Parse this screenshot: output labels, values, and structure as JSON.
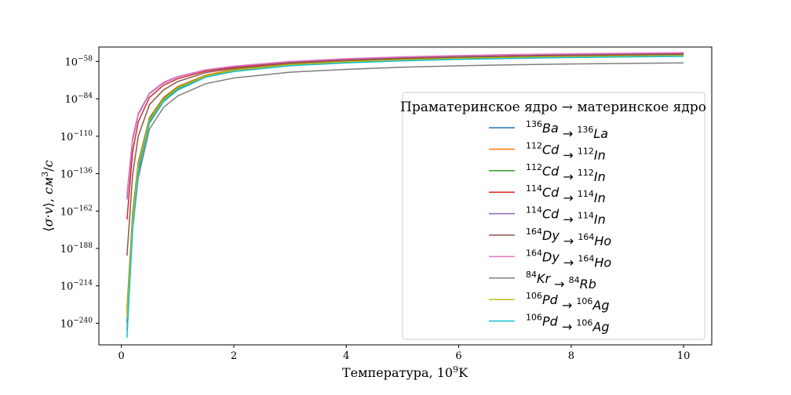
{
  "chart_data": {
    "type": "line",
    "xlabel": "Температура, 10⁹K",
    "ylabel": "⟨σ·v⟩, см³/c",
    "xlim": [
      -0.4,
      10.5
    ],
    "ylim": [
      -255,
      -48
    ],
    "yscale": "log",
    "x_ticks": [
      0,
      2,
      4,
      6,
      8,
      10
    ],
    "y_ticks": [
      -58,
      -84,
      -110,
      -136,
      -162,
      -188,
      -214,
      -240
    ],
    "y_tick_base": "10",
    "grid": false,
    "legend": {
      "title": "Праматеринское ядро → материнское ядро",
      "placement": "center-right"
    },
    "series": [
      {
        "name": "136Ba → 136La",
        "color": "#1f77b4",
        "parent_mass": "136",
        "parent_el": "Ba",
        "daughter_mass": "136",
        "daughter_el": "La",
        "x": [
          0.1,
          0.2,
          0.3,
          0.5,
          0.75,
          1,
          1.5,
          2,
          3,
          4,
          5,
          6,
          7,
          8,
          9,
          10
        ],
        "y": [
          -240,
          -170,
          -133,
          -100,
          -85,
          -77,
          -68.5,
          -64.5,
          -60.5,
          -58.5,
          -57,
          -56,
          -55.3,
          -54.8,
          -54.4,
          -54
        ]
      },
      {
        "name": "112Cd → 112In",
        "color": "#ff7f0e",
        "parent_mass": "112",
        "parent_el": "Cd",
        "daughter_mass": "112",
        "daughter_el": "In",
        "x": [
          0.1,
          0.2,
          0.3,
          0.5,
          0.75,
          1,
          1.5,
          2,
          3,
          4,
          5,
          6,
          7,
          8,
          9,
          10
        ],
        "y": [
          -230,
          -163,
          -128,
          -97,
          -83,
          -75.5,
          -67.5,
          -63.5,
          -59.8,
          -57.8,
          -56.5,
          -55.5,
          -54.8,
          -54.3,
          -53.9,
          -53.5
        ]
      },
      {
        "name": "112Cd → 112In",
        "color": "#2ca02c",
        "parent_mass": "112",
        "parent_el": "Cd",
        "daughter_mass": "112",
        "daughter_el": "In",
        "x": [
          0.1,
          0.2,
          0.3,
          0.5,
          0.75,
          1,
          1.5,
          2,
          3,
          4,
          5,
          6,
          7,
          8,
          9,
          10
        ],
        "y": [
          -233,
          -165,
          -129.5,
          -98,
          -83.7,
          -76,
          -68,
          -64,
          -60.2,
          -58.2,
          -56.8,
          -55.8,
          -55.1,
          -54.6,
          -54.2,
          -53.8
        ]
      },
      {
        "name": "114Cd → 114In",
        "color": "#d62728",
        "parent_mass": "114",
        "parent_el": "Cd",
        "daughter_mass": "114",
        "daughter_el": "In",
        "x": [
          0.1,
          0.2,
          0.3,
          0.5,
          0.75,
          1,
          1.5,
          2,
          3,
          4,
          5,
          6,
          7,
          8,
          9,
          10
        ],
        "y": [
          -168,
          -121,
          -100,
          -83,
          -74.5,
          -70,
          -64.8,
          -62,
          -58.5,
          -56.5,
          -55.2,
          -54.3,
          -53.6,
          -53.1,
          -52.7,
          -52.3
        ]
      },
      {
        "name": "114Cd → 114In",
        "color": "#9467bd",
        "parent_mass": "114",
        "parent_el": "Cd",
        "daughter_mass": "114",
        "daughter_el": "In",
        "x": [
          0.1,
          0.2,
          0.3,
          0.5,
          0.75,
          1,
          1.5,
          2,
          3,
          4,
          5,
          6,
          7,
          8,
          9,
          10
        ],
        "y": [
          -154,
          -113,
          -95,
          -80.5,
          -73,
          -68.8,
          -64,
          -61.5,
          -58.2,
          -56.3,
          -55,
          -54.1,
          -53.4,
          -52.9,
          -52.5,
          -52.1
        ]
      },
      {
        "name": "164Dy → 164Ho",
        "color": "#8c564b",
        "parent_mass": "164",
        "parent_el": "Dy",
        "daughter_mass": "164",
        "daughter_el": "Ho",
        "x": [
          0.1,
          0.2,
          0.3,
          0.5,
          0.75,
          1,
          1.5,
          2,
          3,
          4,
          5,
          6,
          7,
          8,
          9,
          10
        ],
        "y": [
          -193,
          -137,
          -110,
          -88,
          -77.8,
          -72,
          -65.8,
          -62.8,
          -59.2,
          -57.2,
          -55.9,
          -55,
          -54.3,
          -53.8,
          -53.4,
          -53
        ]
      },
      {
        "name": "164Dy → 164Ho",
        "color": "#e377c2",
        "parent_mass": "164",
        "parent_el": "Dy",
        "daughter_mass": "164",
        "daughter_el": "Ho",
        "x": [
          0.1,
          0.2,
          0.3,
          0.5,
          0.75,
          1,
          1.5,
          2,
          3,
          4,
          5,
          6,
          7,
          8,
          9,
          10
        ],
        "y": [
          -150,
          -111,
          -94,
          -80,
          -72.5,
          -68.5,
          -63.8,
          -61.3,
          -58,
          -56.1,
          -54.8,
          -53.9,
          -53.2,
          -52.7,
          -52.3,
          -51.9
        ]
      },
      {
        "name": "84Kr → 84Rb",
        "color": "#7f7f7f",
        "parent_mass": "84",
        "parent_el": "Kr",
        "daughter_mass": "84",
        "daughter_el": "Rb",
        "x": [
          0.1,
          0.2,
          0.3,
          0.5,
          0.75,
          1,
          1.5,
          2,
          3,
          4,
          5,
          6,
          7,
          8,
          9,
          10
        ],
        "y": [
          -245,
          -175,
          -139,
          -105,
          -90,
          -82,
          -73.5,
          -69.5,
          -65.5,
          -63.5,
          -62,
          -61,
          -60.3,
          -59.8,
          -59.4,
          -59
        ]
      },
      {
        "name": "106Pd → 106Ag",
        "color": "#bcbd22",
        "parent_mass": "106",
        "parent_el": "Pd",
        "daughter_mass": "106",
        "daughter_el": "Ag",
        "x": [
          0.1,
          0.2,
          0.3,
          0.5,
          0.75,
          1,
          1.5,
          2,
          3,
          4,
          5,
          6,
          7,
          8,
          9,
          10
        ],
        "y": [
          -236,
          -168,
          -131,
          -99,
          -84.5,
          -76.5,
          -68.2,
          -64.2,
          -60.3,
          -58.3,
          -56.9,
          -55.9,
          -55.2,
          -54.7,
          -54.3,
          -53.9
        ]
      },
      {
        "name": "106Pd → 106Ag",
        "color": "#17becf",
        "parent_mass": "106",
        "parent_el": "Pd",
        "daughter_mass": "106",
        "daughter_el": "Ag",
        "x": [
          0.1,
          0.2,
          0.3,
          0.5,
          0.75,
          1,
          1.5,
          2,
          3,
          4,
          5,
          6,
          7,
          8,
          9,
          10
        ],
        "y": [
          -250,
          -175,
          -136,
          -101,
          -86,
          -78,
          -69,
          -65,
          -61,
          -59,
          -57.6,
          -56.6,
          -55.9,
          -55.3,
          -54.9,
          -54.5
        ]
      }
    ]
  }
}
